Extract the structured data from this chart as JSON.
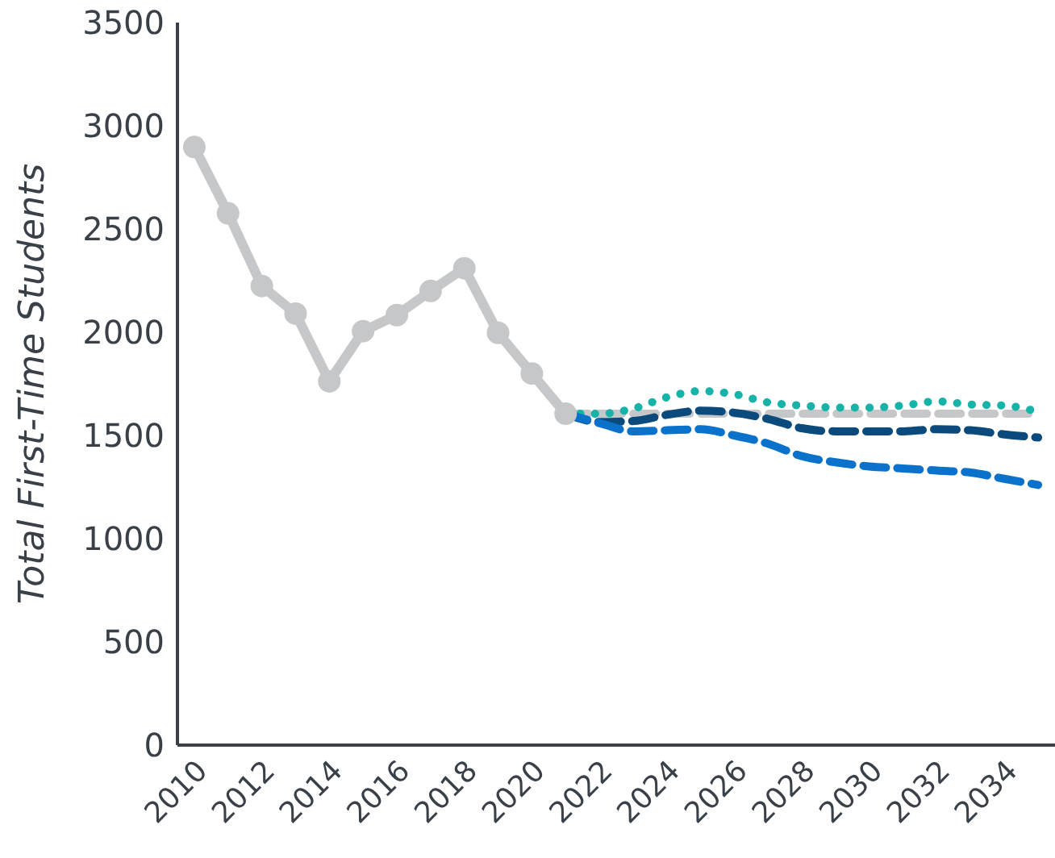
{
  "chart_data": {
    "type": "line",
    "ylabel": "Total First-Time Students",
    "xlim": [
      2009.5,
      2035.5
    ],
    "xticks": [
      2010,
      2012,
      2014,
      2016,
      2018,
      2020,
      2022,
      2024,
      2026,
      2028,
      2030,
      2032,
      2034
    ],
    "ylim": [
      0,
      3500
    ],
    "yticks": [
      0,
      500,
      1000,
      1500,
      2000,
      2500,
      3000,
      3500
    ],
    "grid": false,
    "legend": false,
    "series": [
      {
        "color": "#c5c7c9",
        "marker": "circle",
        "line_style": "solid",
        "x": [
          2010,
          2011,
          2012,
          2013,
          2014,
          2015,
          2016,
          2017,
          2018,
          2019,
          2020,
          2021
        ],
        "values": [
          2897,
          2576,
          2224,
          2090,
          1762,
          2005,
          2083,
          2200,
          2310,
          1997,
          1800,
          1605
        ]
      },
      {
        "color": "#c5c7c9",
        "marker": "none",
        "line_style": "dashed",
        "x": [
          2021,
          2022,
          2023,
          2024,
          2025,
          2026,
          2027,
          2028,
          2029,
          2030,
          2031,
          2032,
          2033,
          2034,
          2035
        ],
        "values": [
          1605,
          1605,
          1605,
          1605,
          1605,
          1605,
          1605,
          1605,
          1605,
          1605,
          1605,
          1605,
          1605,
          1605,
          1605
        ]
      },
      {
        "color": "#17b3a8",
        "marker": "none",
        "line_style": "dotted",
        "x": [
          2021,
          2022,
          2023,
          2024,
          2025,
          2026,
          2027,
          2028,
          2029,
          2030,
          2031,
          2032,
          2033,
          2034,
          2035
        ],
        "values": [
          1605,
          1605,
          1630,
          1685,
          1715,
          1700,
          1660,
          1645,
          1635,
          1635,
          1645,
          1665,
          1650,
          1645,
          1615
        ]
      },
      {
        "color": "#0b4a7d",
        "marker": "none",
        "line_style": "dashed",
        "x": [
          2021,
          2022,
          2023,
          2024,
          2025,
          2026,
          2027,
          2028,
          2029,
          2030,
          2031,
          2032,
          2033,
          2034,
          2035
        ],
        "values": [
          1605,
          1565,
          1570,
          1600,
          1620,
          1610,
          1580,
          1535,
          1520,
          1520,
          1520,
          1530,
          1525,
          1505,
          1490
        ]
      },
      {
        "color": "#0b72cc",
        "marker": "none",
        "line_style": "dashed",
        "x": [
          2021,
          2022,
          2023,
          2024,
          2025,
          2026,
          2027,
          2028,
          2029,
          2030,
          2031,
          2032,
          2033,
          2034,
          2035
        ],
        "values": [
          1605,
          1560,
          1520,
          1525,
          1530,
          1500,
          1460,
          1400,
          1370,
          1350,
          1340,
          1330,
          1320,
          1290,
          1260
        ]
      }
    ]
  }
}
